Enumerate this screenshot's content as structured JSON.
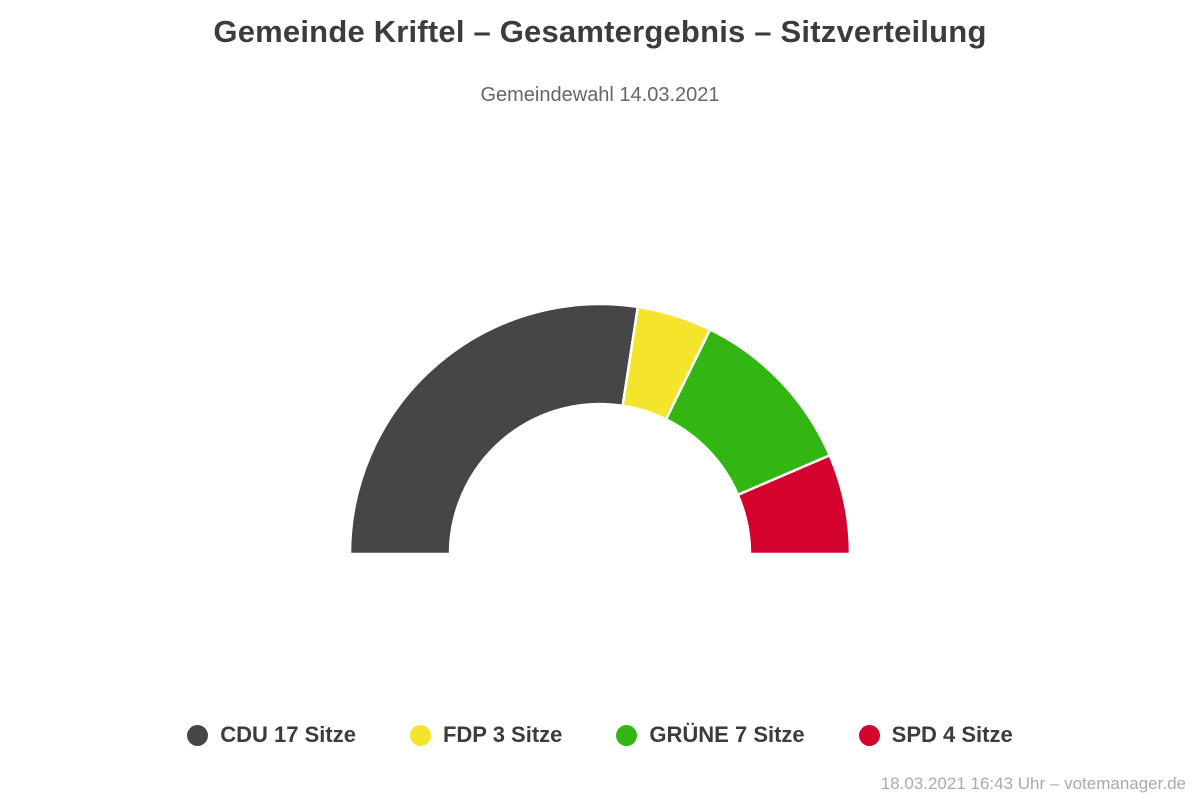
{
  "header": {
    "title": "Gemeinde Kriftel – Gesamtergebnis – Sitzverteilung",
    "subtitle": "Gemeindewahl 14.03.2021"
  },
  "footer": {
    "note": "18.03.2021 16:43 Uhr – votemanager.de"
  },
  "colors": {
    "title_text": "#3c3c3c",
    "subtitle_text": "#666666",
    "footer_text": "#aaaaaa",
    "background": "#ffffff",
    "segment_gap": "#ffffff"
  },
  "chart_data": {
    "type": "pie",
    "variant": "half-donut-gauge",
    "title": "Gemeinde Kriftel – Gesamtergebnis – Sitzverteilung",
    "subtitle": "Gemeindewahl 14.03.2021",
    "unit": "Sitze",
    "total_seats": 31,
    "start_angle_deg": 180,
    "end_angle_deg": 0,
    "inner_radius_ratio": 0.6,
    "legend_position": "bottom",
    "series": [
      {
        "name": "CDU",
        "seats": 17,
        "color": "#464646",
        "label": "CDU 17 Sitze"
      },
      {
        "name": "FDP",
        "seats": 3,
        "color": "#f5e42c",
        "label": "FDP 3 Sitze"
      },
      {
        "name": "GRÜNE",
        "seats": 7,
        "color": "#33b514",
        "label": "GRÜNE 7 Sitze"
      },
      {
        "name": "SPD",
        "seats": 4,
        "color": "#d4032d",
        "label": "SPD 4 Sitze"
      }
    ]
  }
}
